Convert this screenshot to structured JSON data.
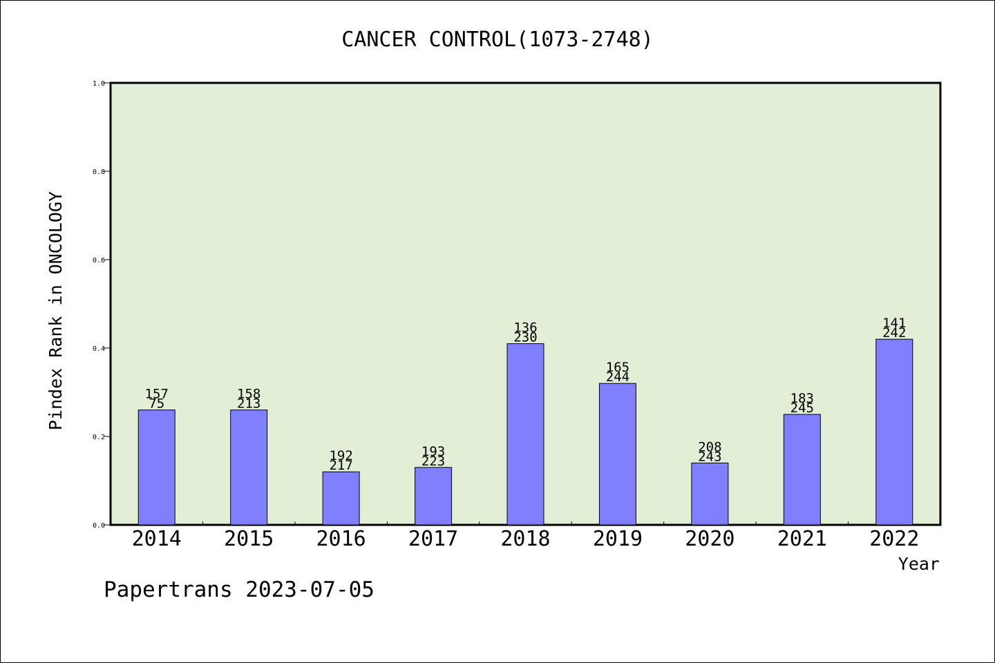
{
  "chart_data": {
    "type": "bar",
    "title": "CANCER CONTROL(1073-2748)",
    "xlabel": "Year",
    "ylabel": "Pindex Rank in ONCOLOGY",
    "ylim": [
      0,
      1.0
    ],
    "yticks": [
      "0.0",
      "0.2",
      "0.4",
      "0.6",
      "0.8",
      "1.0"
    ],
    "categories": [
      "2014",
      "2015",
      "2016",
      "2017",
      "2018",
      "2019",
      "2020",
      "2021",
      "2022"
    ],
    "values": [
      0.26,
      0.26,
      0.12,
      0.13,
      0.41,
      0.32,
      0.14,
      0.25,
      0.42
    ],
    "labels_top": [
      "157",
      "158",
      "192",
      "193",
      "136",
      "165",
      "208",
      "183",
      "141"
    ],
    "labels_bottom": [
      "75",
      "213",
      "217",
      "223",
      "230",
      "244",
      "243",
      "245",
      "242"
    ],
    "grid": false,
    "colors": {
      "plot_background": "#e2efd6",
      "bar_fill": "#8080ff",
      "bar_stroke": "#000000",
      "axis": "#000000"
    }
  },
  "footer": {
    "credit": "Papertrans 2023-07-05"
  }
}
